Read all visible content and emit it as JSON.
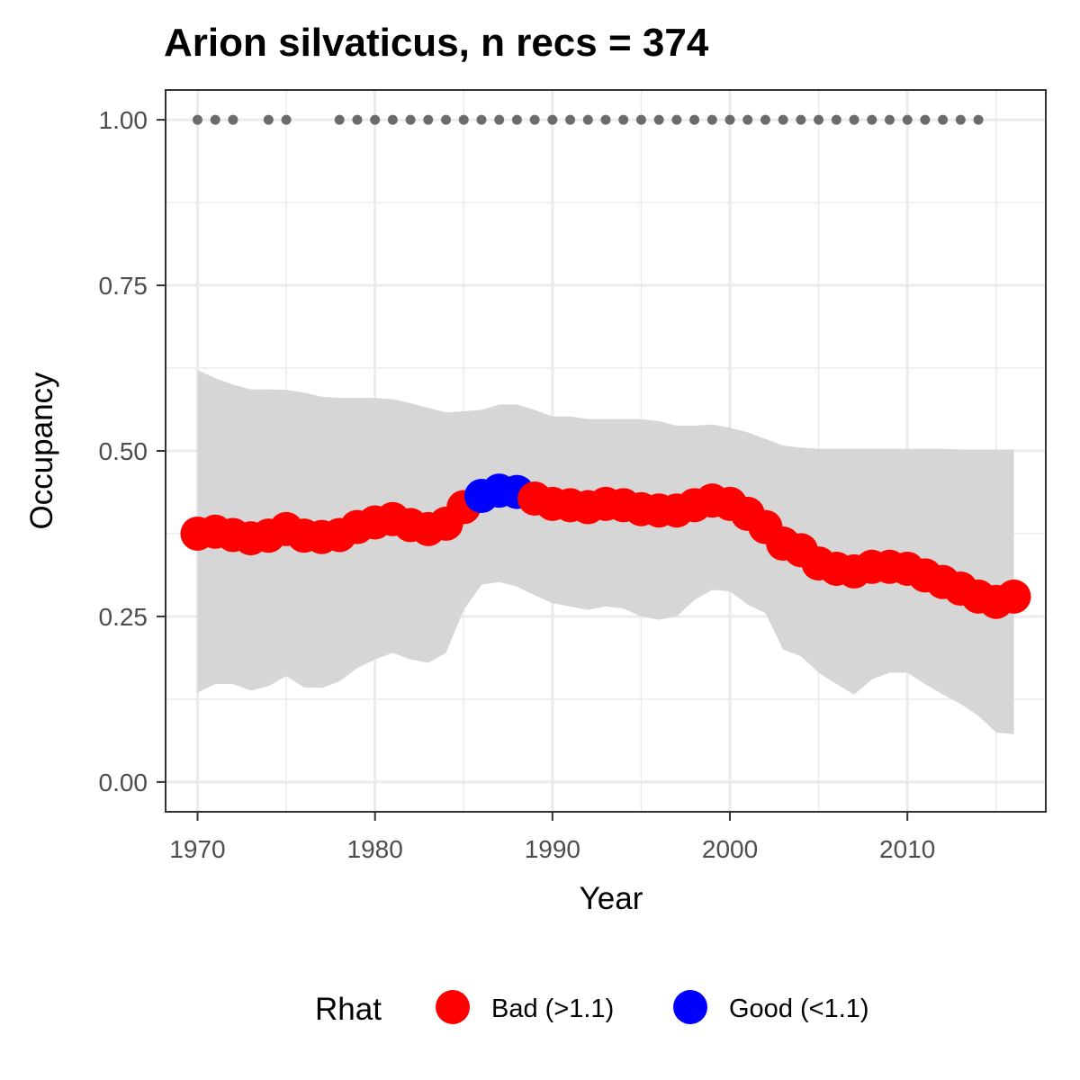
{
  "chart_data": {
    "type": "line",
    "title": "Arion silvaticus, n recs = 374",
    "xlabel": "Year",
    "ylabel": "Occupancy",
    "xlim": [
      1968.2,
      2017.8
    ],
    "ylim": [
      -0.045,
      1.045
    ],
    "x_ticks": [
      1970,
      1980,
      1990,
      2000,
      2010
    ],
    "x_tick_labels": [
      "1970",
      "1980",
      "1990",
      "2000",
      "2010"
    ],
    "y_ticks": [
      0,
      0.25,
      0.5,
      0.75,
      1.0
    ],
    "y_tick_labels": [
      "0.00",
      "0.25",
      "0.50",
      "0.75",
      "1.00"
    ],
    "grid": true,
    "legend": {
      "title": "Rhat",
      "position": "bottom",
      "entries": [
        {
          "label": "Bad (>1.1)",
          "color": "#ff0000"
        },
        {
          "label": "Good (<1.1)",
          "color": "#0000ff"
        }
      ]
    },
    "colors": {
      "bad": "#ff0000",
      "good": "#0000ff",
      "ribbon": "#d6d6d6",
      "records": "#6b6b6b"
    },
    "series": [
      {
        "x": [
          1970,
          1971,
          1972,
          1973,
          1974,
          1975,
          1976,
          1977,
          1978,
          1979,
          1980,
          1981,
          1982,
          1983,
          1984,
          1985,
          1986,
          1987,
          1988,
          1989,
          1990,
          1991,
          1992,
          1993,
          1994,
          1995,
          1996,
          1997,
          1998,
          1999,
          2000,
          2001,
          2002,
          2003,
          2004,
          2005,
          2006,
          2007,
          2008,
          2009,
          2010,
          2011,
          2012,
          2013,
          2014,
          2015,
          2016
        ],
        "y": [
          0.375,
          0.378,
          0.373,
          0.368,
          0.372,
          0.382,
          0.372,
          0.37,
          0.373,
          0.385,
          0.392,
          0.397,
          0.388,
          0.382,
          0.39,
          0.415,
          0.432,
          0.44,
          0.438,
          0.428,
          0.42,
          0.418,
          0.415,
          0.42,
          0.418,
          0.412,
          0.41,
          0.41,
          0.418,
          0.425,
          0.42,
          0.405,
          0.385,
          0.36,
          0.35,
          0.33,
          0.322,
          0.318,
          0.325,
          0.325,
          0.322,
          0.312,
          0.302,
          0.292,
          0.28,
          0.272,
          0.28
        ],
        "rhat": [
          "bad",
          "bad",
          "bad",
          "bad",
          "bad",
          "bad",
          "bad",
          "bad",
          "bad",
          "bad",
          "bad",
          "bad",
          "bad",
          "bad",
          "bad",
          "bad",
          "good",
          "good",
          "good",
          "bad",
          "bad",
          "bad",
          "bad",
          "bad",
          "bad",
          "bad",
          "bad",
          "bad",
          "bad",
          "bad",
          "bad",
          "bad",
          "bad",
          "bad",
          "bad",
          "bad",
          "bad",
          "bad",
          "bad",
          "bad",
          "bad",
          "bad",
          "bad",
          "bad",
          "bad",
          "bad",
          "bad"
        ],
        "lower": [
          0.135,
          0.148,
          0.148,
          0.138,
          0.145,
          0.16,
          0.143,
          0.142,
          0.152,
          0.172,
          0.185,
          0.195,
          0.185,
          0.18,
          0.195,
          0.26,
          0.298,
          0.302,
          0.295,
          0.282,
          0.27,
          0.265,
          0.26,
          0.265,
          0.262,
          0.25,
          0.245,
          0.25,
          0.275,
          0.29,
          0.288,
          0.268,
          0.255,
          0.2,
          0.19,
          0.165,
          0.148,
          0.132,
          0.155,
          0.165,
          0.165,
          0.148,
          0.132,
          0.118,
          0.1,
          0.075,
          0.072
        ],
        "upper": [
          0.622,
          0.61,
          0.6,
          0.593,
          0.593,
          0.592,
          0.588,
          0.582,
          0.58,
          0.58,
          0.58,
          0.578,
          0.572,
          0.565,
          0.558,
          0.56,
          0.562,
          0.57,
          0.57,
          0.562,
          0.552,
          0.552,
          0.548,
          0.548,
          0.548,
          0.548,
          0.545,
          0.538,
          0.538,
          0.54,
          0.535,
          0.528,
          0.518,
          0.508,
          0.505,
          0.503,
          0.503,
          0.503,
          0.503,
          0.503,
          0.503,
          0.503,
          0.503,
          0.502,
          0.502,
          0.502,
          0.502
        ]
      }
    ],
    "records": {
      "y": 1.0,
      "x": [
        1970,
        1971,
        1972,
        1974,
        1975,
        1978,
        1979,
        1980,
        1981,
        1982,
        1983,
        1984,
        1985,
        1986,
        1987,
        1988,
        1989,
        1990,
        1991,
        1992,
        1993,
        1994,
        1995,
        1996,
        1997,
        1998,
        1999,
        2000,
        2001,
        2002,
        2003,
        2004,
        2005,
        2006,
        2007,
        2008,
        2009,
        2010,
        2011,
        2012,
        2013,
        2014
      ]
    }
  }
}
